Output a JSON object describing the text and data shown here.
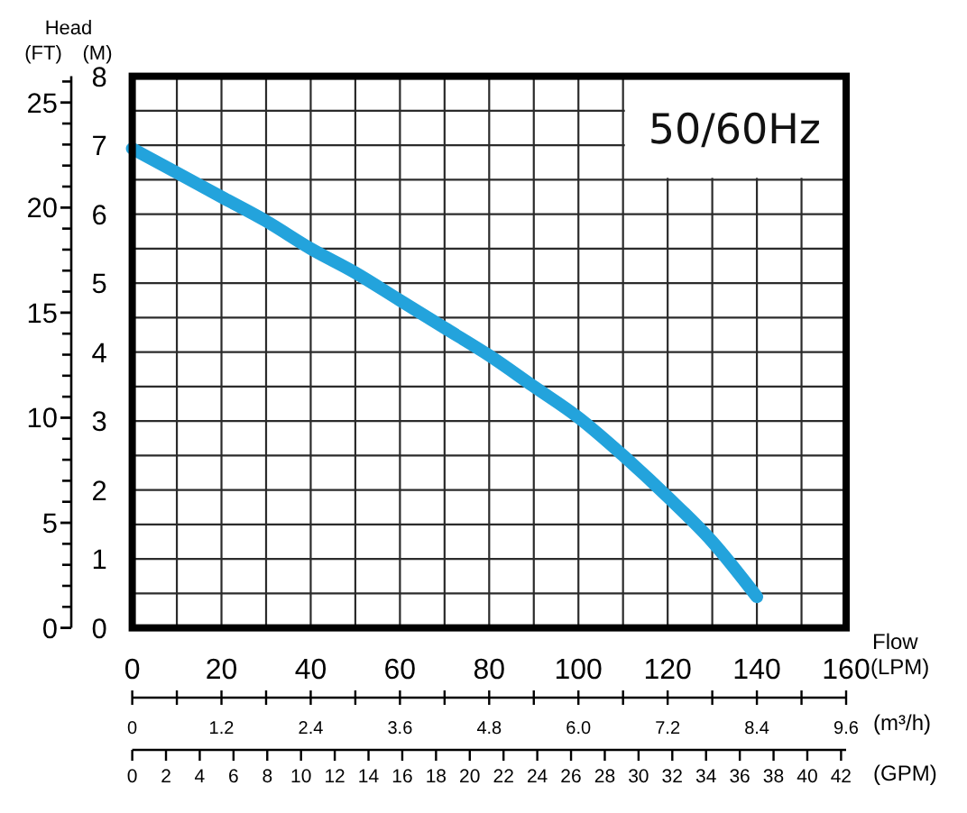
{
  "chart_data": {
    "type": "line",
    "xlabel": "(LPM)",
    "x2label": "(GPM)",
    "ylabel": "(M)",
    "y2label": "(FT)",
    "annotations": [
      "50/60Hz",
      "Head",
      "Flow",
      "(m³/h)",
      "0",
      "1.2",
      "2.4",
      "3.6",
      "4.8",
      "6.0",
      "7.2",
      "8.4",
      "9.6"
    ],
    "x": [
      0,
      10,
      20,
      30,
      40,
      50,
      60,
      70,
      80,
      90,
      100,
      110,
      120,
      130,
      140
    ],
    "series": [
      {
        "color": "#23a3dc",
        "values": [
          6.95,
          6.6,
          6.25,
          5.9,
          5.5,
          5.15,
          4.75,
          4.35,
          3.95,
          3.5,
          3.05,
          2.5,
          1.9,
          1.25,
          0.45
        ]
      }
    ],
    "xlim": [
      0,
      160
    ],
    "xticks": [
      0,
      {
        "value": 10,
        "label": null
      },
      20,
      {
        "value": 30,
        "label": null
      },
      40,
      {
        "value": 50,
        "label": null
      },
      60,
      {
        "value": 70,
        "label": null
      },
      80,
      {
        "value": 90,
        "label": null
      },
      100,
      {
        "value": 110,
        "label": null
      },
      120,
      {
        "value": 130,
        "label": null
      },
      140,
      {
        "value": 150,
        "label": null
      },
      160
    ],
    "x2lim": [
      0,
      42.3
    ],
    "x2ticks": [
      0,
      2,
      4,
      6,
      8,
      10,
      12,
      14,
      16,
      18,
      20,
      22,
      24,
      26,
      28,
      30,
      32,
      34,
      36,
      38,
      40,
      42
    ],
    "ylim": [
      0,
      8
    ],
    "yticks": [
      0,
      {
        "value": 0.5,
        "label": null
      },
      1,
      {
        "value": 1.5,
        "label": null
      },
      2,
      {
        "value": 2.5,
        "label": null
      },
      3,
      {
        "value": 3.5,
        "label": null
      },
      4,
      {
        "value": 4.5,
        "label": null
      },
      5,
      {
        "value": 5.5,
        "label": null
      },
      6,
      {
        "value": 6.5,
        "label": null
      },
      7,
      {
        "value": 7.5,
        "label": null
      },
      8
    ],
    "y2lim": [
      0,
      26.25
    ],
    "y2ticks": [
      0,
      5,
      10,
      15,
      20,
      25
    ],
    "grid": true,
    "line_style": "solid"
  }
}
